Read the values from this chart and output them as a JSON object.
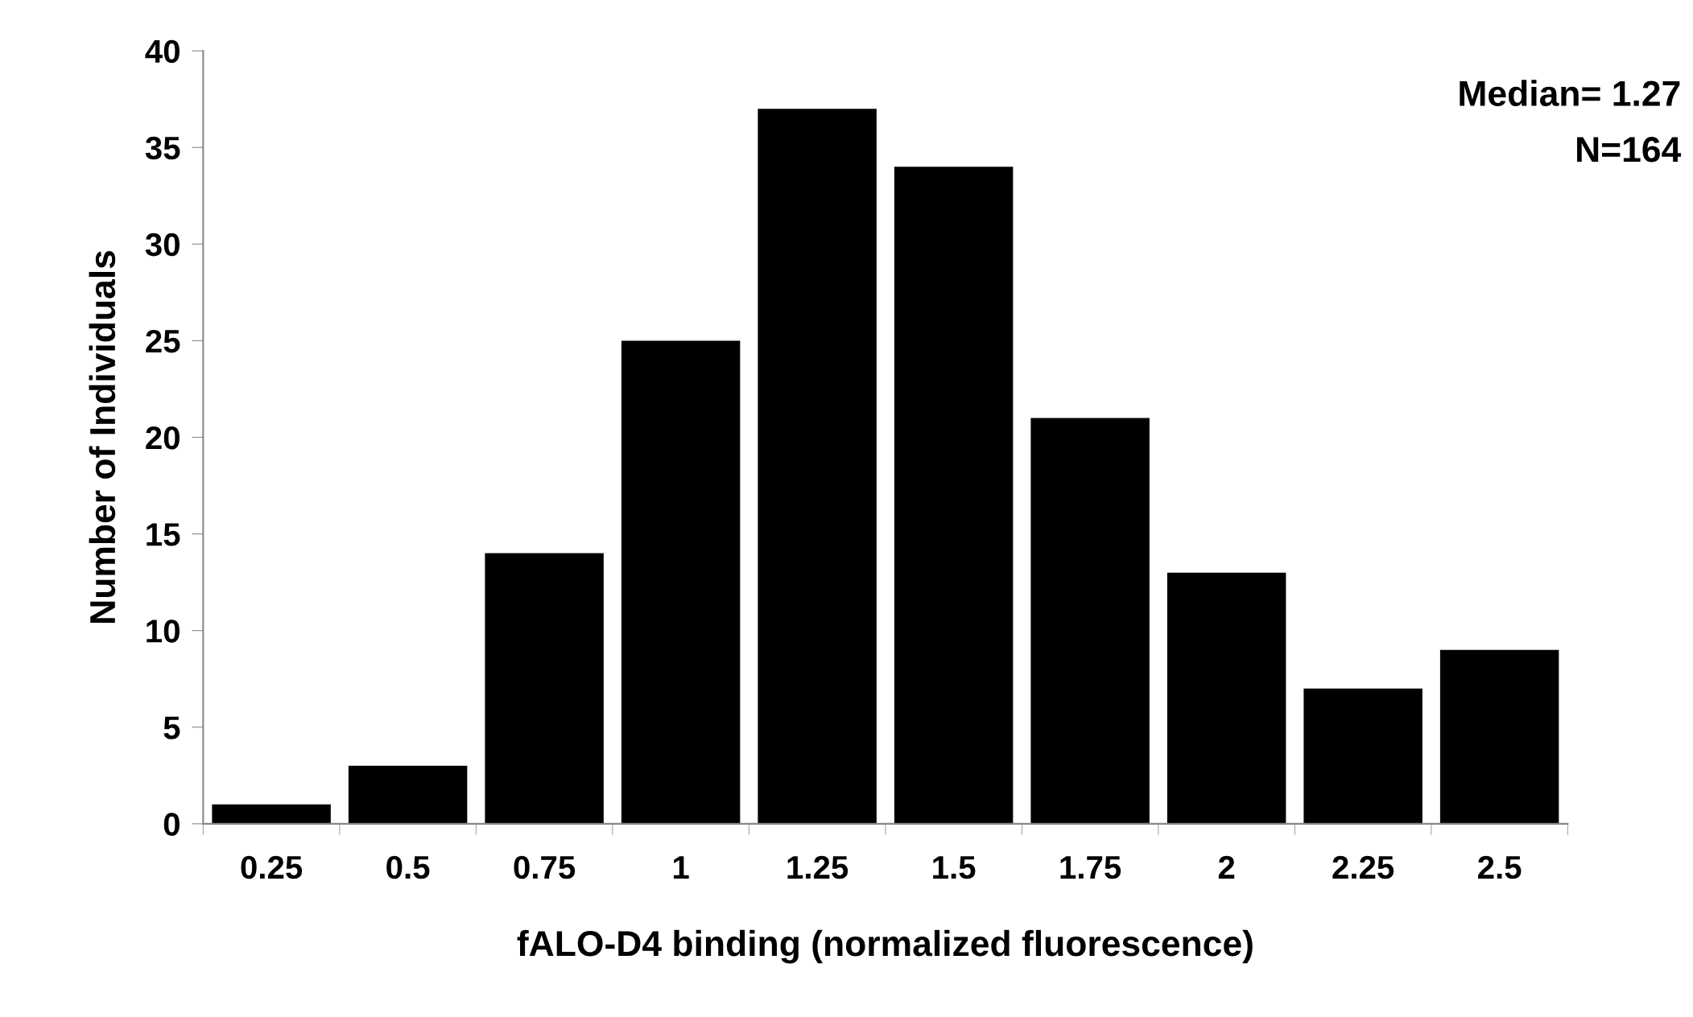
{
  "chart_data": {
    "type": "bar",
    "categories": [
      "0.25",
      "0.5",
      "0.75",
      "1",
      "1.25",
      "1.5",
      "1.75",
      "2",
      "2.25",
      "2.5"
    ],
    "values": [
      1,
      3,
      14,
      25,
      37,
      34,
      21,
      13,
      7,
      9
    ],
    "color": "#000000",
    "xlabel": "fALO-D4 binding (normalized fluorescence)",
    "ylabel": "Number of Individuals",
    "ylim": [
      0,
      40
    ],
    "yticks": [
      0,
      5,
      10,
      15,
      20,
      25,
      30,
      35,
      40
    ],
    "annotations": [
      "Median= 1.27",
      "N=164"
    ],
    "grid": false,
    "legend": false
  }
}
